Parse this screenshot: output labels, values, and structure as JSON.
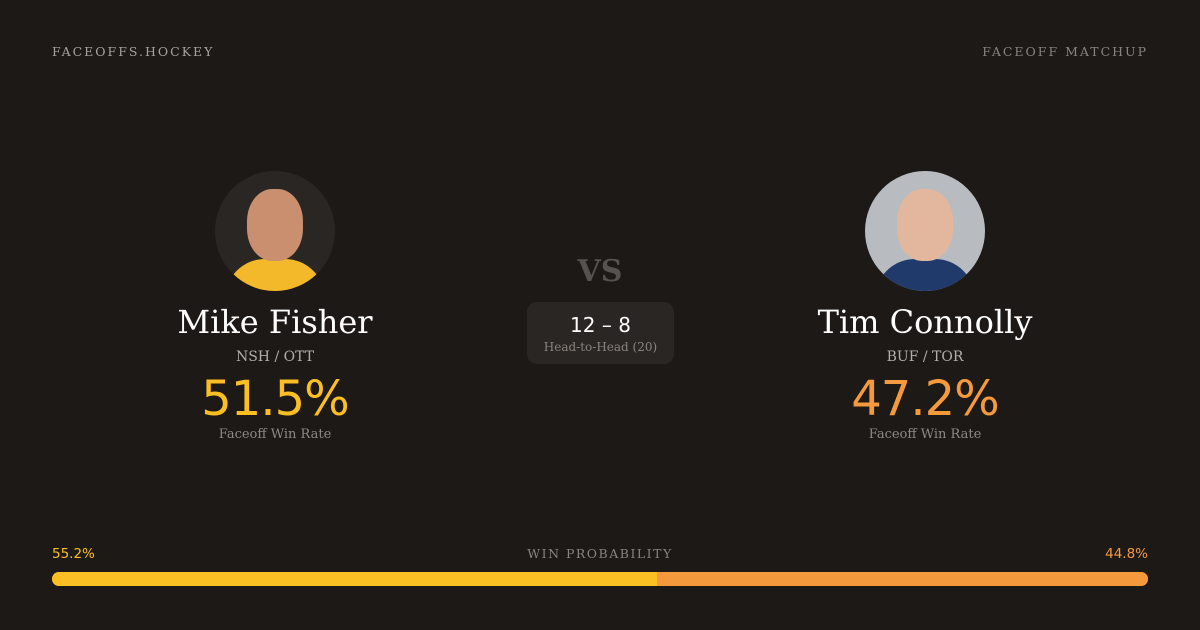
{
  "brand": "FACEOFFS.HOCKEY",
  "page_label": "FACEOFF MATCHUP",
  "vs": "VS",
  "player1": {
    "name": "Mike Fisher",
    "teams": "NSH / OTT",
    "win_rate": "51.5%",
    "win_rate_label": "Faceoff Win Rate"
  },
  "player2": {
    "name": "Tim Connolly",
    "teams": "BUF / TOR",
    "win_rate": "47.2%",
    "win_rate_label": "Faceoff Win Rate"
  },
  "head_to_head": {
    "score": "12 – 8",
    "label": "Head-to-Head (20)"
  },
  "win_probability": {
    "title": "WIN PROBABILITY",
    "player1": "55.2%",
    "player2": "44.8%",
    "player1_value": 55.2,
    "player2_value": 44.8
  },
  "colors": {
    "background": "#1c1917",
    "player1": "#fbbf24",
    "player2": "#f59a3c"
  }
}
